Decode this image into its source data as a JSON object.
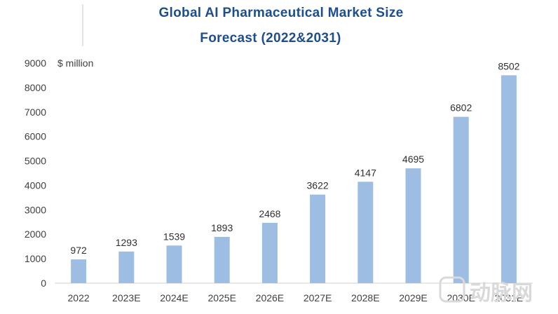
{
  "chart_data": {
    "type": "bar",
    "title_line1": "Global AI Pharmaceutical Market Size",
    "title_line2": "Forecast (2022&2031)",
    "unit_label": "$ million",
    "categories": [
      "2022",
      "2023E",
      "2024E",
      "2025E",
      "2026E",
      "2027E",
      "2028E",
      "2029E",
      "2030E",
      "2031E"
    ],
    "values": [
      972,
      1293,
      1539,
      1893,
      2468,
      3622,
      4147,
      4695,
      6802,
      8502
    ],
    "ylim": [
      0,
      9000
    ],
    "yticks": [
      "0",
      "1000",
      "2000",
      "3000",
      "4000",
      "5000",
      "6000",
      "7000",
      "8000",
      "9000"
    ],
    "bar_color": "#9dbde3",
    "grid": false
  },
  "watermark": "动脉网"
}
